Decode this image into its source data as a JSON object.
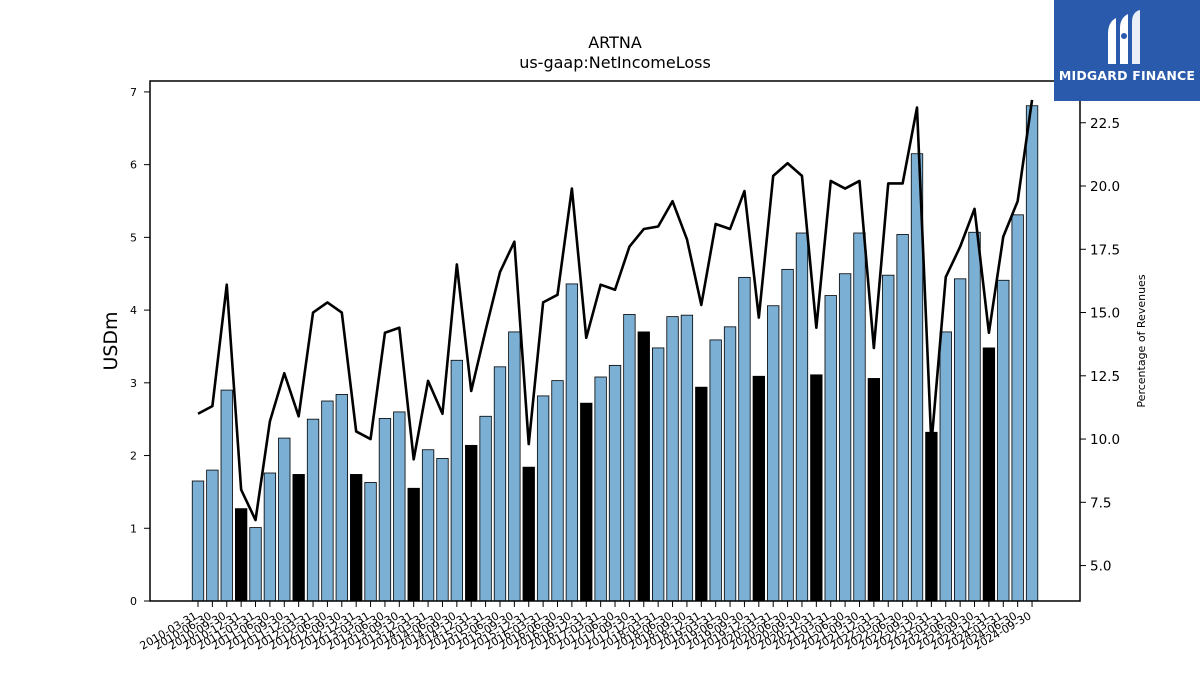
{
  "chart_data": {
    "type": "bar+line",
    "title": "ARTNA",
    "subtitle": "us-gaap:NetIncomeLoss",
    "ylabel": "USDm",
    "y2label": "Percentage of Revenues",
    "ylim": [
      0,
      7.15
    ],
    "y2lim": [
      3.6,
      24.15
    ],
    "yticks": [
      0,
      1,
      2,
      3,
      4,
      5,
      6,
      7
    ],
    "y2ticks": [
      5.0,
      7.5,
      10.0,
      12.5,
      15.0,
      17.5,
      20.0,
      22.5
    ],
    "categories": [
      "2010-03-31",
      "2010-06-30",
      "2010-09-30",
      "2010-12-31",
      "2011-03-31",
      "2011-06-30",
      "2011-09-30",
      "2011-12-31",
      "2012-03-31",
      "2012-06-30",
      "2012-09-30",
      "2012-12-31",
      "2013-03-31",
      "2013-06-30",
      "2013-09-30",
      "2013-12-31",
      "2014-03-31",
      "2014-06-30",
      "2014-09-30",
      "2014-12-31",
      "2015-03-31",
      "2015-06-30",
      "2015-09-30",
      "2015-12-31",
      "2016-03-31",
      "2016-06-30",
      "2016-09-30",
      "2016-12-31",
      "2017-03-31",
      "2017-06-30",
      "2017-09-30",
      "2017-12-31",
      "2018-03-31",
      "2018-06-30",
      "2018-09-30",
      "2018-12-31",
      "2019-03-31",
      "2019-06-30",
      "2019-09-30",
      "2019-12-31",
      "2020-03-31",
      "2020-06-30",
      "2020-09-30",
      "2020-12-31",
      "2021-03-31",
      "2021-06-30",
      "2021-09-30",
      "2021-12-31",
      "2022-03-31",
      "2022-06-30",
      "2022-09-30",
      "2022-12-31",
      "2023-03-31",
      "2023-06-30",
      "2023-09-30",
      "2023-12-31",
      "2024-03-31",
      "2024-06-30",
      "2024-09-30"
    ],
    "series": [
      {
        "type": "bar",
        "axis": "left",
        "values": [
          1.65,
          1.8,
          2.9,
          1.27,
          1.01,
          1.76,
          2.24,
          1.74,
          2.5,
          2.75,
          2.84,
          1.74,
          1.63,
          2.51,
          2.6,
          1.55,
          2.08,
          1.96,
          3.31,
          2.14,
          2.54,
          3.22,
          3.7,
          1.84,
          2.82,
          3.03,
          4.36,
          2.72,
          3.08,
          3.24,
          3.94,
          3.7,
          3.48,
          3.91,
          3.93,
          2.94,
          3.59,
          3.77,
          4.45,
          3.09,
          4.06,
          4.56,
          5.06,
          3.11,
          4.2,
          4.5,
          5.06,
          3.06,
          4.48,
          5.04,
          6.15,
          2.32,
          3.7,
          4.43,
          5.07,
          3.48,
          4.41,
          5.31,
          6.81
        ],
        "year_end_flags": [
          false,
          false,
          false,
          true,
          false,
          false,
          false,
          true,
          false,
          false,
          false,
          true,
          false,
          false,
          false,
          true,
          false,
          false,
          false,
          true,
          false,
          false,
          false,
          true,
          false,
          false,
          false,
          true,
          false,
          false,
          false,
          true,
          false,
          false,
          false,
          true,
          false,
          false,
          false,
          true,
          false,
          false,
          false,
          true,
          false,
          false,
          false,
          true,
          false,
          false,
          false,
          true,
          false,
          false,
          false,
          true,
          false,
          false,
          false
        ],
        "color": "#7bafd4",
        "year_end_color": "#000000"
      },
      {
        "type": "line",
        "axis": "right",
        "values": [
          11.0,
          11.3,
          16.1,
          8.0,
          6.8,
          10.7,
          12.6,
          10.9,
          15.0,
          15.4,
          15.0,
          10.3,
          10.0,
          14.2,
          14.4,
          9.2,
          12.3,
          11.0,
          16.9,
          11.9,
          14.3,
          16.6,
          17.8,
          9.8,
          15.4,
          15.7,
          19.9,
          14.0,
          16.1,
          15.9,
          17.6,
          18.3,
          18.4,
          19.4,
          17.9,
          15.3,
          18.5,
          18.3,
          19.8,
          14.8,
          20.4,
          20.9,
          20.4,
          14.4,
          20.2,
          19.9,
          20.2,
          13.6,
          20.1,
          20.1,
          23.1,
          9.8,
          16.4,
          17.6,
          19.1,
          14.2,
          18.0,
          19.4,
          23.4
        ],
        "color": "#000000"
      }
    ]
  },
  "logo": {
    "text": "MIDGARD FINANCE",
    "color": "#2a5aac"
  }
}
